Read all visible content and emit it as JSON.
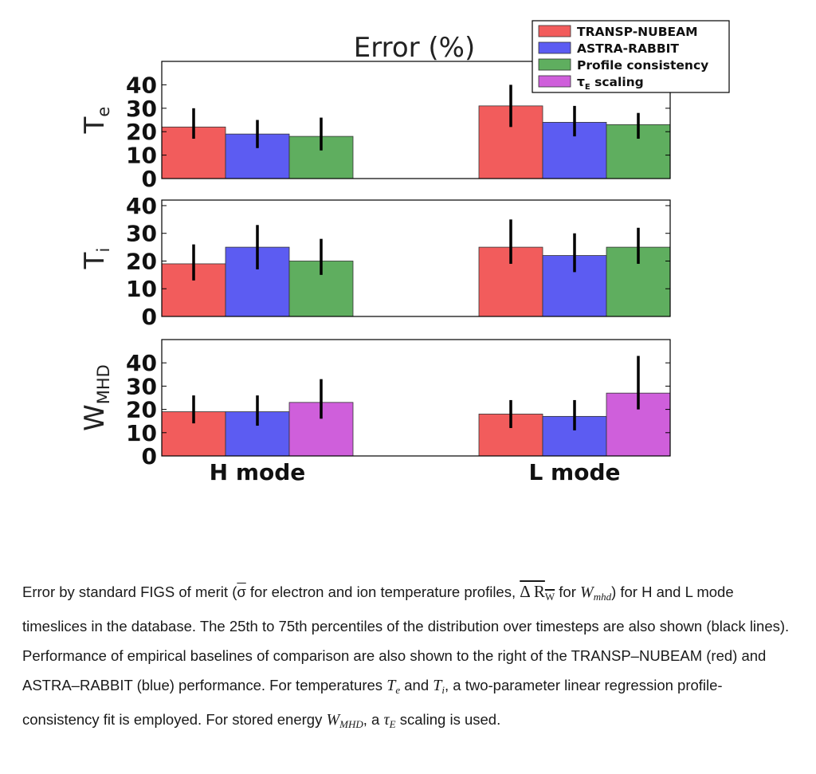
{
  "chart_data": {
    "type": "bar",
    "title": "Error (%)",
    "groups": [
      "H mode",
      "L mode"
    ],
    "legend": {
      "placement": "top-right",
      "entries": [
        {
          "label": "TRANSP-NUBEAM",
          "color": "#f25c5c"
        },
        {
          "label": "ASTRA-RABBIT",
          "color": "#5c5cf2"
        },
        {
          "label": "Profile consistency",
          "color": "#5fae5f"
        },
        {
          "label": "τ_E scaling",
          "color": "#cf5fdb"
        }
      ]
    },
    "panels": [
      {
        "ylabel": "Te",
        "ylim": [
          0,
          50
        ],
        "yticks": [
          "0",
          "10",
          "20",
          "30",
          "40"
        ],
        "series": [
          {
            "name": "TRANSP-NUBEAM",
            "color": "#f25c5c",
            "values": [
              22,
              31
            ],
            "err_low": [
              17,
              22
            ],
            "err_high": [
              30,
              40
            ]
          },
          {
            "name": "ASTRA-RABBIT",
            "color": "#5c5cf2",
            "values": [
              19,
              24
            ],
            "err_low": [
              13,
              18
            ],
            "err_high": [
              25,
              31
            ]
          },
          {
            "name": "Profile consistency",
            "color": "#5fae5f",
            "values": [
              18,
              23
            ],
            "err_low": [
              12,
              17
            ],
            "err_high": [
              26,
              28
            ]
          }
        ]
      },
      {
        "ylabel": "Ti",
        "ylim": [
          0,
          42
        ],
        "yticks": [
          "0",
          "10",
          "20",
          "30",
          "40"
        ],
        "series": [
          {
            "name": "TRANSP-NUBEAM",
            "color": "#f25c5c",
            "values": [
              19,
              25
            ],
            "err_low": [
              13,
              19
            ],
            "err_high": [
              26,
              35
            ]
          },
          {
            "name": "ASTRA-RABBIT",
            "color": "#5c5cf2",
            "values": [
              25,
              22
            ],
            "err_low": [
              17,
              16
            ],
            "err_high": [
              33,
              30
            ]
          },
          {
            "name": "Profile consistency",
            "color": "#5fae5f",
            "values": [
              20,
              25
            ],
            "err_low": [
              15,
              19
            ],
            "err_high": [
              28,
              32
            ]
          }
        ]
      },
      {
        "ylabel": "WMHD",
        "ylim": [
          0,
          50
        ],
        "yticks": [
          "0",
          "10",
          "20",
          "30",
          "40"
        ],
        "series": [
          {
            "name": "TRANSP-NUBEAM",
            "color": "#f25c5c",
            "values": [
              19,
              18
            ],
            "err_low": [
              14,
              12
            ],
            "err_high": [
              26,
              24
            ]
          },
          {
            "name": "ASTRA-RABBIT",
            "color": "#5c5cf2",
            "values": [
              19,
              17
            ],
            "err_low": [
              13,
              11
            ],
            "err_high": [
              26,
              24
            ]
          },
          {
            "name": "τ_E scaling",
            "color": "#cf5fdb",
            "values": [
              23,
              27
            ],
            "err_low": [
              16,
              20
            ],
            "err_high": [
              33,
              43
            ]
          }
        ]
      }
    ]
  },
  "caption": {
    "p1": "Error by standard FIGS of merit (",
    "sigma": "σ",
    "p2": " for electron and ion temperature profiles, ",
    "delta": "Δ R",
    "delta_sub": "W",
    "p3": " for ",
    "w": "W",
    "w_sub": "mhd",
    "p4": ") for H and L mode timeslices in the database. The 25th to 75th percentiles of the distribution over timesteps are also shown (black lines). Performance of empirical baselines of comparison are also shown to the right of the TRANSP–NUBEAM (red) and ASTRA–RABBIT (blue) performance. For temperatures ",
    "te": "T",
    "te_sub": "e",
    "p5": " and ",
    "ti": "T",
    "ti_sub": "i",
    "p6": ", a two-parameter linear regression profile-consistency fit is employed. For stored energy ",
    "wm": "W",
    "wm_sub": "MHD",
    "p7": ", a ",
    "tau": "τ",
    "tau_sub": "E",
    "p8": " scaling is used."
  }
}
